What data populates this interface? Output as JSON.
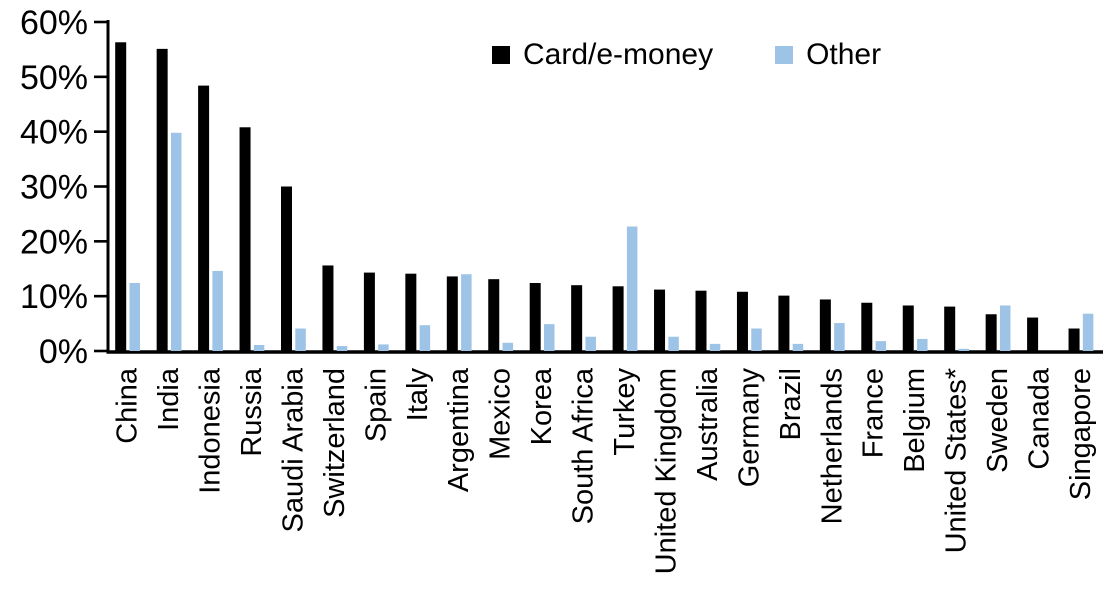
{
  "chart_data": {
    "type": "bar",
    "title": "",
    "xlabel": "",
    "ylabel": "",
    "categories": [
      "China",
      "India",
      "Indonesia",
      "Russia",
      "Saudi Arabia",
      "Switzerland",
      "Spain",
      "Italy",
      "Argentina",
      "Mexico",
      "Korea",
      "South Africa",
      "Turkey",
      "United Kingdom",
      "Australia",
      "Germany",
      "Brazil",
      "Netherlands",
      "France",
      "Belgium",
      "United States*",
      "Sweden",
      "Canada",
      "Singapore"
    ],
    "series": [
      {
        "name": "Card/e-money",
        "color": "#000000",
        "values": [
          56.3,
          55.1,
          48.4,
          40.8,
          30.0,
          15.6,
          14.3,
          14.1,
          13.6,
          13.1,
          12.4,
          12.0,
          11.8,
          11.2,
          11.0,
          10.8,
          10.1,
          9.4,
          8.8,
          8.3,
          8.1,
          6.7,
          6.1,
          4.1
        ]
      },
      {
        "name": "Other",
        "color": "#9DC3E6",
        "values": [
          12.4,
          39.8,
          14.6,
          1.1,
          4.1,
          0.9,
          1.2,
          4.7,
          14.0,
          1.5,
          4.9,
          2.6,
          22.7,
          2.6,
          1.3,
          4.1,
          1.3,
          5.1,
          1.8,
          2.2,
          0.4,
          8.3,
          0.0,
          6.8
        ]
      }
    ],
    "ylim": [
      0,
      60
    ],
    "ytick_step": 10,
    "ytick_labels": [
      "0%",
      "10%",
      "20%",
      "30%",
      "40%",
      "50%",
      "60%"
    ],
    "grid": false,
    "legend_position": "top-center",
    "axis_color": "#000000"
  }
}
